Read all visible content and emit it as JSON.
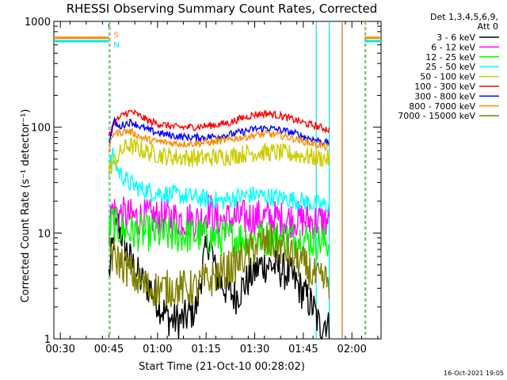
{
  "chart_data": {
    "type": "line",
    "title": "RHESSI Observing Summary Count Rates, Corrected",
    "xlabel": "Start Time (21-Oct-10 00:28:02)",
    "ylabel": "Corrected Count Rate (s⁻¹ detector⁻¹)",
    "yscale": "log",
    "ylim": [
      1,
      1000
    ],
    "xlim_minutes_after_00_28": [
      0,
      101
    ],
    "x_ticks": [
      {
        "m": 2,
        "label": "00:30"
      },
      {
        "m": 17,
        "label": "00:45"
      },
      {
        "m": 32,
        "label": "01:00"
      },
      {
        "m": 47,
        "label": "01:15"
      },
      {
        "m": 62,
        "label": "01:30"
      },
      {
        "m": 77,
        "label": "01:45"
      },
      {
        "m": 92,
        "label": "02:00"
      }
    ],
    "y_ticks": [
      {
        "v": 1,
        "label": "1"
      },
      {
        "v": 10,
        "label": "10"
      },
      {
        "v": 100,
        "label": "100"
      },
      {
        "v": 1000,
        "label": "1000"
      }
    ],
    "legend_header": [
      "Det 1,3,4,5,6,9,",
      "Att 0"
    ],
    "legend_position": "right",
    "timestamp": "16-Oct-2021 19:05",
    "flags": [
      {
        "letter": "S",
        "color": "#ff8c00",
        "value": 700
      },
      {
        "letter": "N",
        "color": "#00e5ee",
        "value": 650
      }
    ],
    "vlines": [
      {
        "m": 17,
        "color": "#00e5ee",
        "dash": true
      },
      {
        "m": 17.4,
        "color": "#ff8c00",
        "dash": true
      },
      {
        "m": 81,
        "color": "#00e5ee",
        "dash": false
      },
      {
        "m": 85,
        "color": "#00e5ee",
        "dash": false
      },
      {
        "m": 89,
        "color": "#d2691e",
        "dash": false
      },
      {
        "m": 96,
        "color": "#00e5ee",
        "dash": true
      },
      {
        "m": 96.3,
        "color": "#ff8c00",
        "dash": true
      }
    ],
    "series": [
      {
        "name": "3 - 6 keV",
        "color": "#000000",
        "x": [
          17,
          18.5,
          20,
          23,
          27,
          30,
          33,
          36,
          40,
          44,
          46,
          48,
          50,
          53,
          56,
          58,
          61,
          64,
          67,
          70,
          73,
          76,
          80,
          82,
          84,
          85
        ],
        "y": [
          4,
          9,
          12,
          6,
          3.5,
          3,
          2,
          1.5,
          1.5,
          2,
          5,
          9,
          4,
          3,
          2.5,
          3,
          4,
          5,
          5,
          4.5,
          4,
          3,
          2,
          1.3,
          1.5,
          1.2
        ]
      },
      {
        "name": "6 - 12 keV",
        "color": "#ff00ff",
        "x": [
          17,
          18,
          20,
          25,
          30,
          35,
          40,
          45,
          48,
          50,
          55,
          60,
          65,
          70,
          75,
          80,
          85
        ],
        "y": [
          12,
          17,
          15,
          14,
          14,
          14,
          13.5,
          13,
          17,
          13,
          13.5,
          14,
          14,
          13.5,
          13.5,
          13,
          13
        ]
      },
      {
        "name": "12 - 25 keV",
        "color": "#00ff00",
        "x": [
          17,
          18,
          20,
          25,
          30,
          35,
          40,
          45,
          50,
          55,
          60,
          65,
          70,
          75,
          80,
          85
        ],
        "y": [
          10,
          13,
          11,
          10,
          10,
          9.5,
          9.5,
          9.5,
          9,
          9,
          9,
          9,
          9,
          9,
          8.5,
          8
        ]
      },
      {
        "name": "25 - 50 keV",
        "color": "#00ffff",
        "x": [
          17,
          18,
          20,
          23,
          27,
          32,
          37,
          42,
          47,
          52,
          57,
          62,
          67,
          72,
          77,
          80,
          85
        ],
        "y": [
          40,
          55,
          38,
          30,
          26,
          24,
          23,
          22,
          21,
          20,
          22,
          23,
          22,
          21,
          20,
          19,
          18
        ]
      },
      {
        "name": "50 - 100 keV",
        "color": "#cccc00",
        "x": [
          17,
          18,
          19,
          21,
          23,
          26,
          30,
          35,
          40,
          45,
          50,
          55,
          60,
          65,
          70,
          75,
          80,
          85
        ],
        "y": [
          40,
          45,
          48,
          60,
          68,
          62,
          57,
          53,
          52,
          51,
          52,
          54,
          57,
          58,
          57,
          55,
          52,
          50
        ]
      },
      {
        "name": "100 - 300 keV",
        "color": "#ff0000",
        "x": [
          17,
          18.5,
          20,
          22,
          24,
          27,
          30,
          34,
          38,
          42,
          46,
          50,
          54,
          58,
          62,
          66,
          70,
          74,
          78,
          82,
          85
        ],
        "y": [
          80,
          110,
          120,
          135,
          140,
          125,
          112,
          105,
          100,
          100,
          102,
          105,
          110,
          122,
          132,
          135,
          128,
          118,
          108,
          100,
          95
        ]
      },
      {
        "name": "300 - 800 keV",
        "color": "#0000ff",
        "x": [
          17,
          18.5,
          20,
          22,
          24,
          27,
          30,
          34,
          38,
          42,
          46,
          50,
          54,
          58,
          62,
          66,
          70,
          74,
          78,
          82,
          85
        ],
        "y": [
          70,
          115,
          100,
          108,
          112,
          100,
          92,
          86,
          82,
          80,
          80,
          82,
          85,
          90,
          96,
          98,
          94,
          88,
          80,
          74,
          70
        ]
      },
      {
        "name": "800 - 7000 keV",
        "color": "#ff8c00",
        "x": [
          17,
          18.5,
          20,
          22,
          24,
          27,
          30,
          34,
          38,
          42,
          46,
          50,
          54,
          58,
          62,
          66,
          70,
          74,
          78,
          82,
          85
        ],
        "y": [
          60,
          90,
          88,
          92,
          90,
          80,
          75,
          72,
          70,
          70,
          71,
          73,
          76,
          80,
          84,
          86,
          84,
          78,
          72,
          68,
          64
        ]
      },
      {
        "name": "7000 - 15000 keV",
        "color": "#808000",
        "x": [
          17,
          18,
          20,
          23,
          26,
          29,
          33,
          37,
          41,
          44,
          46,
          48,
          50,
          53,
          56,
          59,
          62,
          65,
          68,
          71,
          74,
          77,
          80,
          82,
          85
        ],
        "y": [
          9,
          6,
          5.5,
          4.5,
          3.5,
          3,
          3,
          3,
          3,
          3,
          3.5,
          3.5,
          4,
          4.5,
          5,
          6,
          7.5,
          8,
          8,
          7,
          6,
          5,
          4,
          3.5,
          3.5
        ]
      }
    ]
  }
}
